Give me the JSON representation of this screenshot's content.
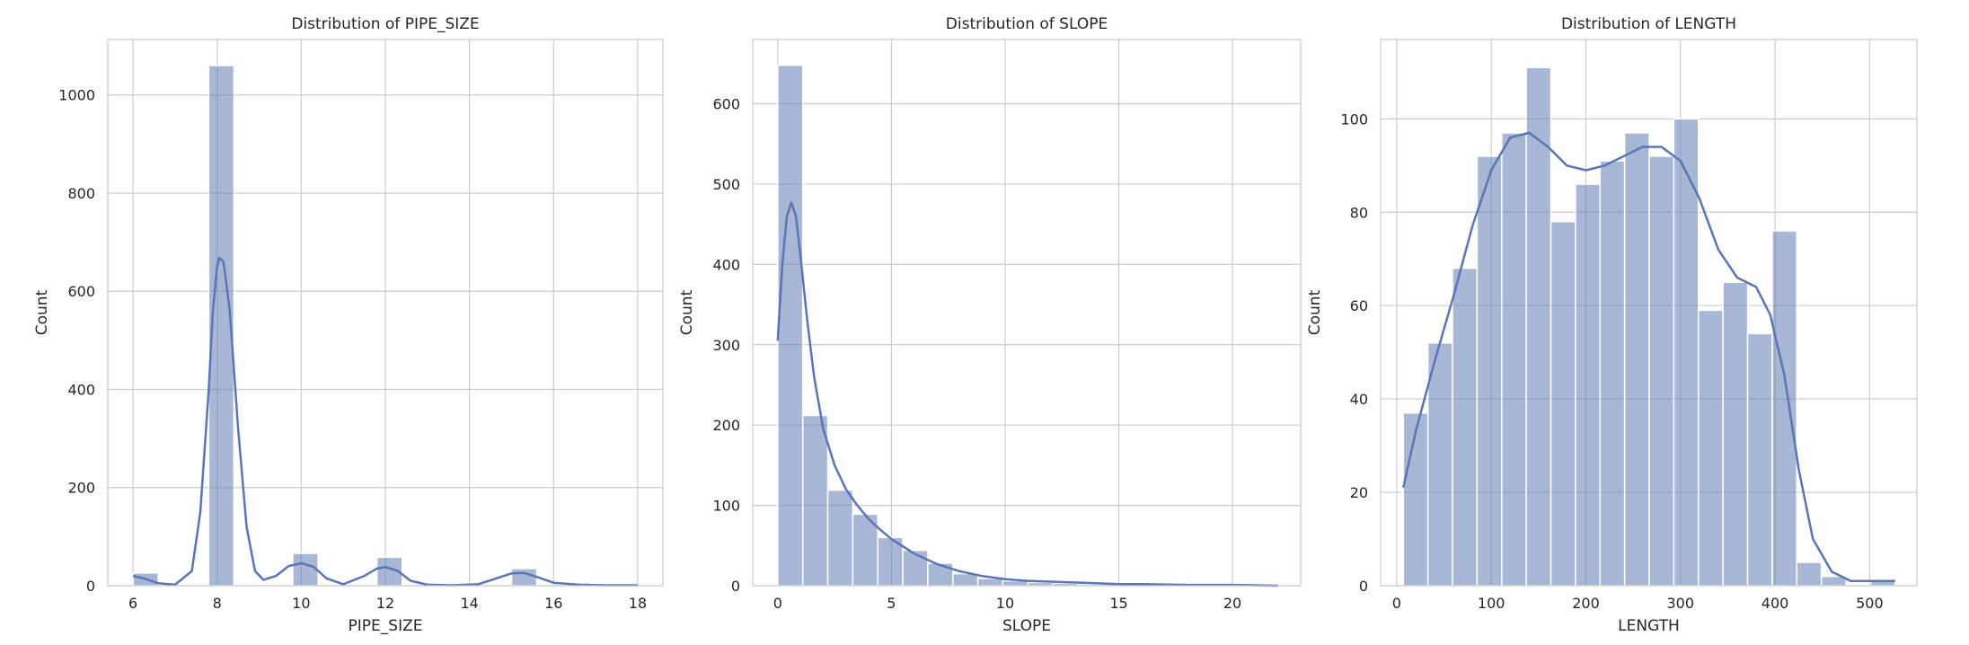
{
  "chart_data": [
    {
      "type": "bar",
      "chart_kind": "histogram with kde",
      "title": "Distribution of PIPE_SIZE",
      "xlabel": "PIPE_SIZE",
      "ylabel": "Count",
      "xlim": [
        5.4,
        18.6
      ],
      "ylim": [
        0,
        1113
      ],
      "xticks": [
        6,
        8,
        10,
        12,
        14,
        16,
        18
      ],
      "yticks": [
        0,
        200,
        400,
        600,
        800,
        1000
      ],
      "bins": [
        {
          "x0": 6.0,
          "x1": 6.6,
          "count": 26
        },
        {
          "x0": 7.8,
          "x1": 8.4,
          "count": 1060
        },
        {
          "x0": 9.8,
          "x1": 10.4,
          "count": 66
        },
        {
          "x0": 11.8,
          "x1": 12.4,
          "count": 58
        },
        {
          "x0": 15.0,
          "x1": 15.6,
          "count": 35
        }
      ],
      "kde": [
        [
          6.0,
          20
        ],
        [
          6.3,
          14
        ],
        [
          6.6,
          5
        ],
        [
          7.0,
          2
        ],
        [
          7.4,
          30
        ],
        [
          7.6,
          150
        ],
        [
          7.8,
          400
        ],
        [
          7.9,
          560
        ],
        [
          8.0,
          650
        ],
        [
          8.05,
          668
        ],
        [
          8.15,
          660
        ],
        [
          8.3,
          560
        ],
        [
          8.5,
          320
        ],
        [
          8.7,
          120
        ],
        [
          8.9,
          30
        ],
        [
          9.1,
          12
        ],
        [
          9.4,
          20
        ],
        [
          9.7,
          40
        ],
        [
          10.0,
          46
        ],
        [
          10.3,
          38
        ],
        [
          10.6,
          15
        ],
        [
          11.0,
          3
        ],
        [
          11.5,
          20
        ],
        [
          11.8,
          35
        ],
        [
          12.0,
          38
        ],
        [
          12.3,
          30
        ],
        [
          12.6,
          10
        ],
        [
          13.0,
          2
        ],
        [
          13.6,
          1
        ],
        [
          14.2,
          3
        ],
        [
          14.6,
          14
        ],
        [
          15.0,
          25
        ],
        [
          15.3,
          26
        ],
        [
          15.6,
          18
        ],
        [
          16.0,
          6
        ],
        [
          16.6,
          2
        ],
        [
          17.2,
          1
        ],
        [
          18.0,
          1
        ]
      ],
      "grid": true
    },
    {
      "type": "bar",
      "chart_kind": "histogram with kde",
      "title": "Distribution of SLOPE",
      "xlabel": "SLOPE",
      "ylabel": "Count",
      "xlim": [
        -1.1,
        23.0
      ],
      "ylim": [
        0,
        680
      ],
      "xticks": [
        0,
        5,
        10,
        15,
        20
      ],
      "yticks": [
        0,
        100,
        200,
        300,
        400,
        500,
        600
      ],
      "bins": [
        {
          "x0": 0.0,
          "x1": 1.1,
          "count": 648
        },
        {
          "x0": 1.1,
          "x1": 2.2,
          "count": 212
        },
        {
          "x0": 2.2,
          "x1": 3.3,
          "count": 119
        },
        {
          "x0": 3.3,
          "x1": 4.4,
          "count": 89
        },
        {
          "x0": 4.4,
          "x1": 5.5,
          "count": 60
        },
        {
          "x0": 5.5,
          "x1": 6.6,
          "count": 44
        },
        {
          "x0": 6.6,
          "x1": 7.7,
          "count": 28
        },
        {
          "x0": 7.7,
          "x1": 8.8,
          "count": 15
        },
        {
          "x0": 8.8,
          "x1": 9.9,
          "count": 9
        },
        {
          "x0": 9.9,
          "x1": 11.0,
          "count": 6
        },
        {
          "x0": 11.0,
          "x1": 12.1,
          "count": 4
        },
        {
          "x0": 12.1,
          "x1": 13.2,
          "count": 3
        },
        {
          "x0": 13.2,
          "x1": 14.3,
          "count": 2
        },
        {
          "x0": 14.3,
          "x1": 15.4,
          "count": 2
        },
        {
          "x0": 15.4,
          "x1": 16.5,
          "count": 1
        },
        {
          "x0": 16.5,
          "x1": 17.6,
          "count": 1
        },
        {
          "x0": 17.6,
          "x1": 18.7,
          "count": 1
        },
        {
          "x0": 18.7,
          "x1": 19.8,
          "count": 1
        },
        {
          "x0": 19.8,
          "x1": 20.9,
          "count": 1
        },
        {
          "x0": 20.9,
          "x1": 22.0,
          "count": 1
        }
      ],
      "kde": [
        [
          0,
          305
        ],
        [
          0.2,
          400
        ],
        [
          0.4,
          460
        ],
        [
          0.6,
          477
        ],
        [
          0.8,
          460
        ],
        [
          1.0,
          410
        ],
        [
          1.3,
          330
        ],
        [
          1.6,
          260
        ],
        [
          2.0,
          195
        ],
        [
          2.5,
          150
        ],
        [
          3.0,
          120
        ],
        [
          3.5,
          100
        ],
        [
          4.0,
          83
        ],
        [
          4.5,
          70
        ],
        [
          5.0,
          58
        ],
        [
          6.0,
          40
        ],
        [
          7.0,
          27
        ],
        [
          8.0,
          18
        ],
        [
          9.0,
          12
        ],
        [
          10.0,
          8
        ],
        [
          11.0,
          6
        ],
        [
          12.0,
          5
        ],
        [
          13.0,
          4
        ],
        [
          14.0,
          3
        ],
        [
          15.0,
          2
        ],
        [
          16.0,
          2
        ],
        [
          18.0,
          1
        ],
        [
          20.0,
          1
        ],
        [
          22.0,
          0
        ]
      ],
      "grid": true
    },
    {
      "type": "bar",
      "chart_kind": "histogram with kde",
      "title": "Distribution of LENGTH",
      "xlabel": "LENGTH",
      "ylabel": "Count",
      "xlim": [
        -17,
        550
      ],
      "ylim": [
        0,
        117
      ],
      "xticks": [
        0,
        100,
        200,
        300,
        400,
        500
      ],
      "yticks": [
        0,
        20,
        40,
        60,
        80,
        100
      ],
      "bins": [
        {
          "x0": 7,
          "x1": 33,
          "count": 37
        },
        {
          "x0": 33,
          "x1": 59,
          "count": 52
        },
        {
          "x0": 59,
          "x1": 85,
          "count": 68
        },
        {
          "x0": 85,
          "x1": 111,
          "count": 92
        },
        {
          "x0": 111,
          "x1": 137,
          "count": 97
        },
        {
          "x0": 137,
          "x1": 163,
          "count": 111
        },
        {
          "x0": 163,
          "x1": 189,
          "count": 78
        },
        {
          "x0": 189,
          "x1": 215,
          "count": 86
        },
        {
          "x0": 215,
          "x1": 241,
          "count": 91
        },
        {
          "x0": 241,
          "x1": 267,
          "count": 97
        },
        {
          "x0": 267,
          "x1": 293,
          "count": 92
        },
        {
          "x0": 293,
          "x1": 319,
          "count": 100
        },
        {
          "x0": 319,
          "x1": 345,
          "count": 59
        },
        {
          "x0": 345,
          "x1": 371,
          "count": 65
        },
        {
          "x0": 371,
          "x1": 397,
          "count": 54
        },
        {
          "x0": 397,
          "x1": 423,
          "count": 76
        },
        {
          "x0": 423,
          "x1": 449,
          "count": 5
        },
        {
          "x0": 449,
          "x1": 475,
          "count": 2
        },
        {
          "x0": 475,
          "x1": 501,
          "count": 0
        },
        {
          "x0": 501,
          "x1": 527,
          "count": 1
        }
      ],
      "kde": [
        [
          7,
          21
        ],
        [
          20,
          33
        ],
        [
          40,
          48
        ],
        [
          60,
          62
        ],
        [
          80,
          77
        ],
        [
          100,
          89
        ],
        [
          120,
          96
        ],
        [
          140,
          97
        ],
        [
          160,
          94
        ],
        [
          180,
          90
        ],
        [
          200,
          89
        ],
        [
          220,
          90
        ],
        [
          240,
          92
        ],
        [
          260,
          94
        ],
        [
          280,
          94
        ],
        [
          300,
          91
        ],
        [
          320,
          83
        ],
        [
          340,
          72
        ],
        [
          360,
          66
        ],
        [
          380,
          64
        ],
        [
          395,
          58
        ],
        [
          410,
          45
        ],
        [
          425,
          25
        ],
        [
          440,
          10
        ],
        [
          460,
          3
        ],
        [
          480,
          1
        ],
        [
          500,
          1
        ],
        [
          527,
          1
        ]
      ],
      "grid": true
    }
  ]
}
